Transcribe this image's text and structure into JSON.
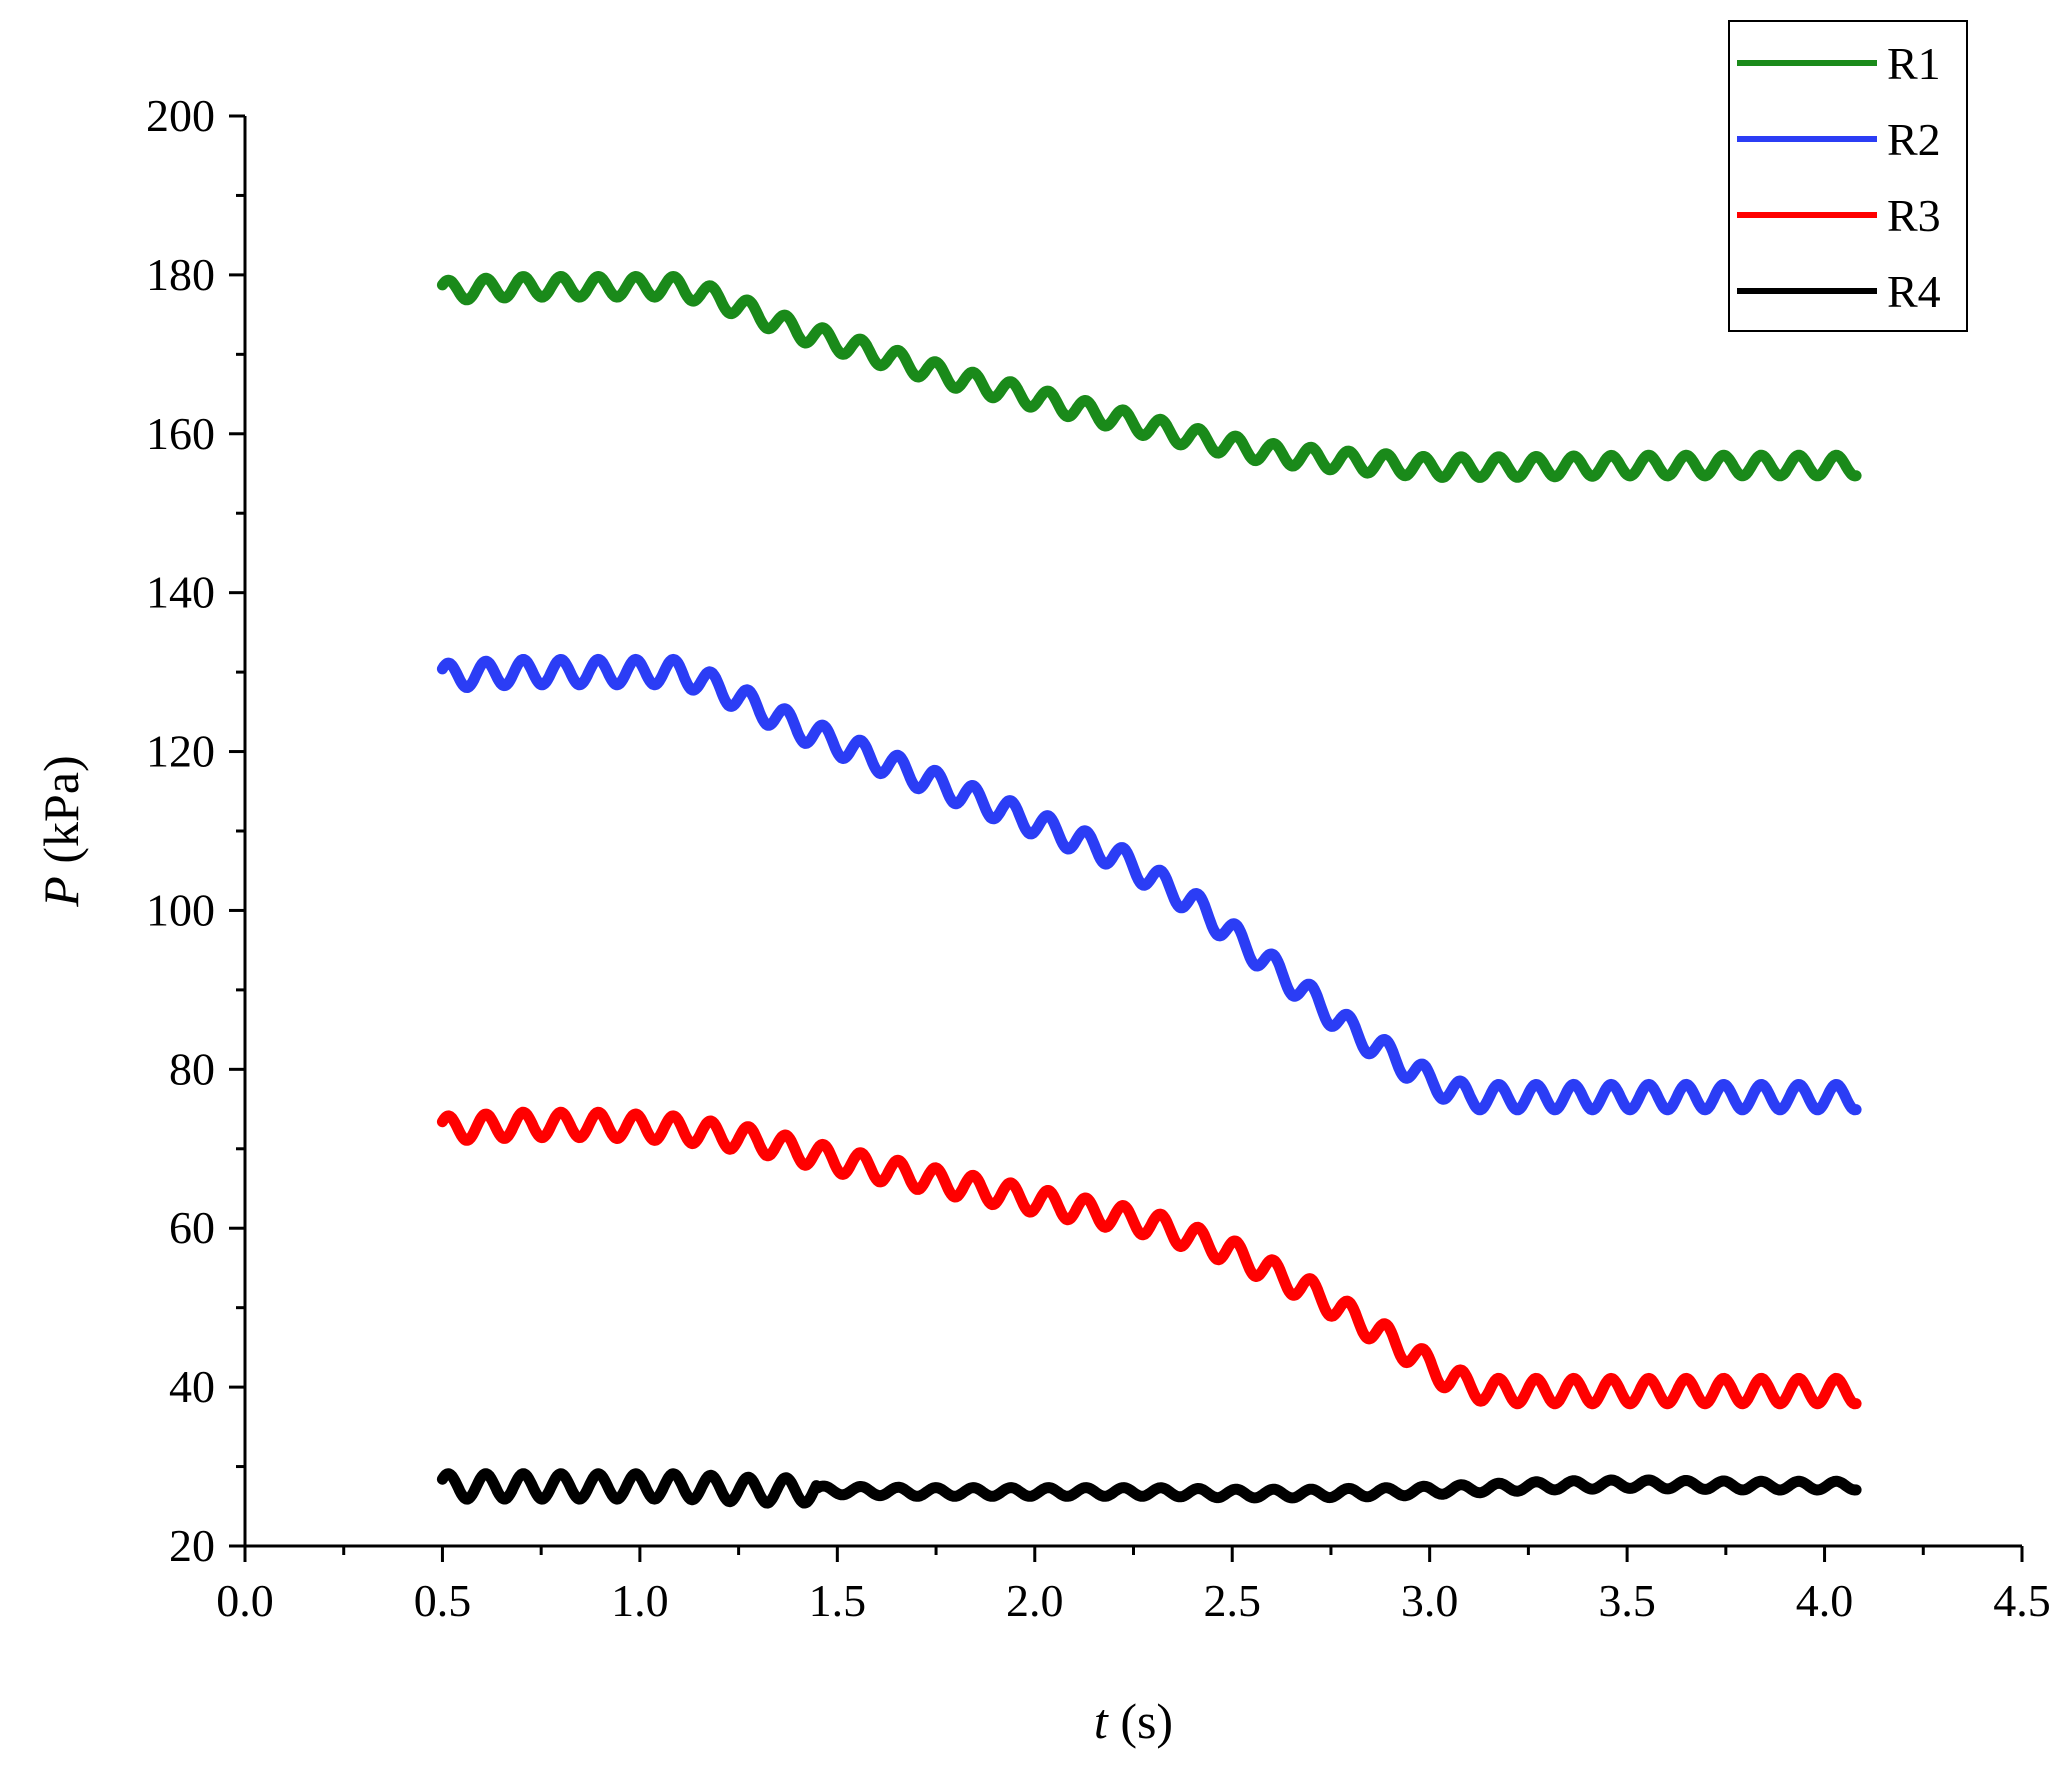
{
  "chart_data": {
    "type": "line",
    "title": "",
    "xlabel_italic": "t",
    "xlabel_rest": " (s)",
    "ylabel_italic": "P",
    "ylabel_rest": " (kPa)",
    "xlim": [
      0.0,
      4.5
    ],
    "ylim": [
      20,
      200
    ],
    "xticks": [
      "0.0",
      "0.5",
      "1.0",
      "1.5",
      "2.0",
      "2.5",
      "3.0",
      "3.5",
      "4.0",
      "4.5"
    ],
    "yticks": [
      "20",
      "40",
      "60",
      "80",
      "100",
      "120",
      "140",
      "160",
      "180",
      "200"
    ],
    "grid": false,
    "legend_position": "top-right",
    "series": [
      {
        "name": "R1",
        "color": "#1a8a1a",
        "oscillation_amplitude": 1.3,
        "points": [
          [
            0.5,
            178
          ],
          [
            0.7,
            178.5
          ],
          [
            0.9,
            178.5
          ],
          [
            1.1,
            178.5
          ],
          [
            1.2,
            177
          ],
          [
            1.4,
            173
          ],
          [
            1.6,
            170
          ],
          [
            1.8,
            167
          ],
          [
            2.0,
            164.5
          ],
          [
            2.2,
            162
          ],
          [
            2.4,
            159.5
          ],
          [
            2.6,
            157.5
          ],
          [
            2.8,
            156.5
          ],
          [
            3.0,
            155.8
          ],
          [
            3.2,
            155.8
          ],
          [
            3.5,
            156
          ],
          [
            3.8,
            156
          ],
          [
            4.08,
            156
          ]
        ]
      },
      {
        "name": "R2",
        "color": "#2b3df5",
        "oscillation_amplitude": 1.6,
        "points": [
          [
            0.5,
            129.5
          ],
          [
            0.7,
            130
          ],
          [
            0.9,
            130
          ],
          [
            1.1,
            130
          ],
          [
            1.2,
            128
          ],
          [
            1.4,
            123
          ],
          [
            1.6,
            119
          ],
          [
            1.8,
            115
          ],
          [
            2.0,
            111
          ],
          [
            2.2,
            107
          ],
          [
            2.4,
            101
          ],
          [
            2.6,
            93
          ],
          [
            2.8,
            85
          ],
          [
            3.0,
            78.5
          ],
          [
            3.1,
            76.5
          ],
          [
            3.3,
            76.5
          ],
          [
            3.6,
            76.5
          ],
          [
            4.08,
            76.5
          ]
        ]
      },
      {
        "name": "R3",
        "color": "#ff0000",
        "oscillation_amplitude": 1.6,
        "points": [
          [
            0.5,
            72.5
          ],
          [
            0.7,
            73
          ],
          [
            0.9,
            73
          ],
          [
            1.1,
            72.5
          ],
          [
            1.3,
            71
          ],
          [
            1.5,
            68.5
          ],
          [
            1.7,
            66.5
          ],
          [
            1.9,
            64.5
          ],
          [
            2.1,
            62.5
          ],
          [
            2.3,
            60.5
          ],
          [
            2.5,
            57
          ],
          [
            2.7,
            52
          ],
          [
            2.9,
            46
          ],
          [
            3.05,
            41
          ],
          [
            3.15,
            39.5
          ],
          [
            3.5,
            39.5
          ],
          [
            4.08,
            39.5
          ]
        ]
      },
      {
        "name": "R4",
        "color": "#000000",
        "oscillation_amplitude": 1.6,
        "points": [
          [
            0.5,
            27.5
          ],
          [
            0.7,
            27.5
          ],
          [
            0.9,
            27.5
          ],
          [
            1.1,
            27.5
          ],
          [
            1.3,
            27
          ],
          [
            1.5,
            27
          ],
          [
            1.7,
            26.8
          ],
          [
            1.9,
            26.8
          ],
          [
            2.1,
            26.8
          ],
          [
            2.3,
            26.8
          ],
          [
            2.5,
            26.6
          ],
          [
            2.7,
            26.6
          ],
          [
            2.9,
            26.8
          ],
          [
            3.1,
            27.2
          ],
          [
            3.3,
            27.6
          ],
          [
            3.5,
            27.8
          ],
          [
            3.8,
            27.6
          ],
          [
            4.08,
            27.6
          ]
        ]
      }
    ]
  }
}
